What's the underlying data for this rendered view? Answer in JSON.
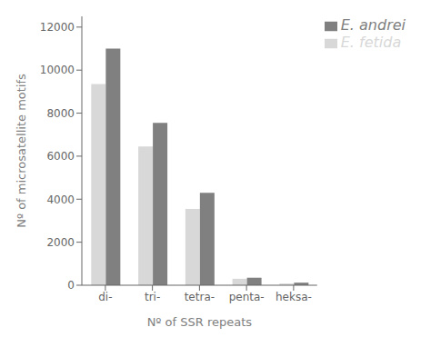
{
  "chart_data": {
    "type": "bar",
    "categories": [
      "di-",
      "tri-",
      "tetra-",
      "penta-",
      "heksa-"
    ],
    "series": [
      {
        "name": "E. fetida",
        "color": "#d8d8d8",
        "values": [
          9350,
          6450,
          3550,
          300,
          80
        ]
      },
      {
        "name": "E. andrei",
        "color": "#808080",
        "values": [
          11000,
          7550,
          4300,
          350,
          120
        ]
      }
    ],
    "xlabel": "Nº of SSR repeats",
    "ylabel": "Nº of microsatellite motifs",
    "ylim": [
      0,
      12500
    ],
    "yticks": [
      0,
      2000,
      4000,
      6000,
      8000,
      10000,
      12000
    ],
    "grid": false,
    "legend": "upper right"
  }
}
